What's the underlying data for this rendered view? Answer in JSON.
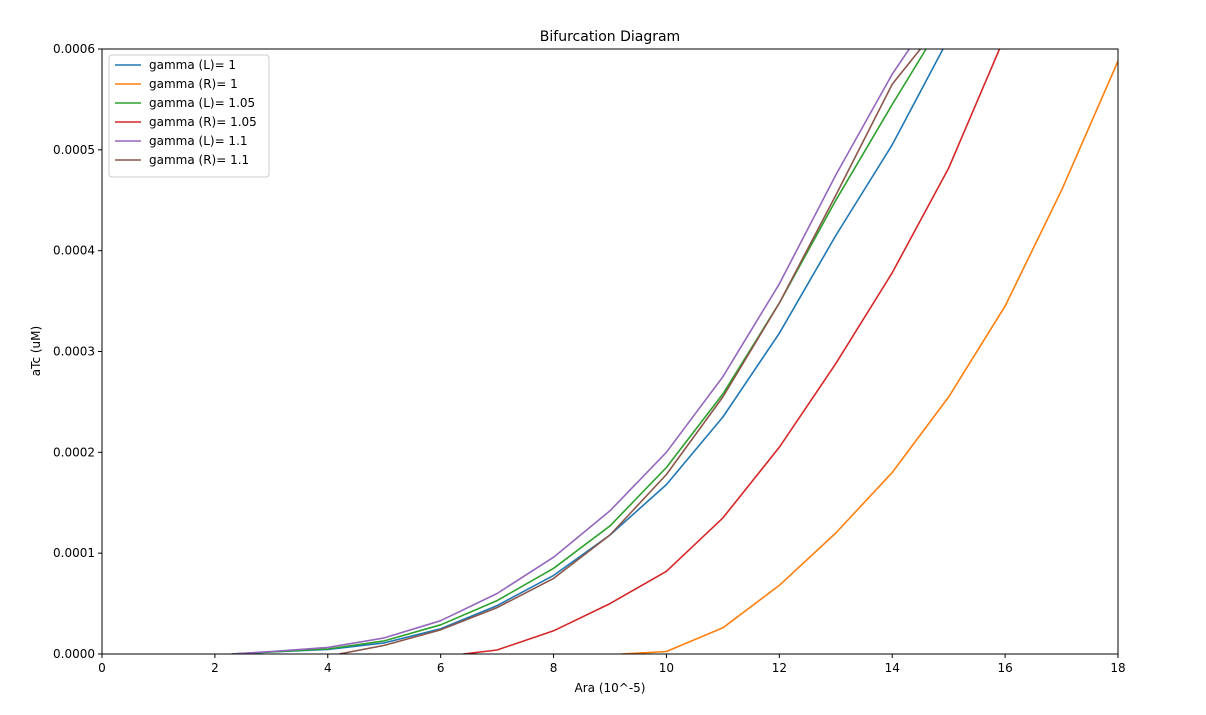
{
  "chart_data": {
    "type": "line",
    "title": "Bifurcation Diagram",
    "xlabel": "Ara (10^-5)",
    "ylabel": "aTc (uM)",
    "xlim": [
      0,
      18
    ],
    "ylim": [
      0,
      0.0006
    ],
    "xticks": [
      "0",
      "2",
      "4",
      "6",
      "8",
      "10",
      "12",
      "14",
      "16",
      "18"
    ],
    "yticks": [
      "0.0000",
      "0.0001",
      "0.0002",
      "0.0003",
      "0.0004",
      "0.0005",
      "0.0006"
    ],
    "grid": false,
    "legend_position": "top-left",
    "series": [
      {
        "name": "gamma (L)= 1",
        "color": "#1f77b4",
        "x": [
          2.3,
          3,
          4,
          5,
          6,
          7,
          8,
          9,
          10,
          11,
          12,
          13,
          14,
          14.9
        ],
        "y": [
          0,
          2e-06,
          4.5e-06,
          1.1e-05,
          2.5e-05,
          4.8e-05,
          7.8e-05,
          0.000118,
          0.000168,
          0.000235,
          0.000318,
          0.000415,
          0.000505,
          0.0006
        ]
      },
      {
        "name": "gamma (R)= 1",
        "color": "#ff7f0e",
        "x": [
          9.2,
          10,
          11,
          12,
          13,
          14,
          15,
          16,
          17,
          18
        ],
        "y": [
          0,
          2.5e-06,
          2.6e-05,
          6.8e-05,
          0.00012,
          0.00018,
          0.000255,
          0.000345,
          0.00046,
          0.000588
        ]
      },
      {
        "name": "gamma (L)= 1.05",
        "color": "#2ca02c",
        "x": [
          2.3,
          3,
          4,
          5,
          6,
          7,
          8,
          9,
          10,
          11,
          12,
          13,
          14,
          14.6
        ],
        "y": [
          0,
          2.2e-06,
          5e-06,
          1.3e-05,
          2.9e-05,
          5.3e-05,
          8.5e-05,
          0.000127,
          0.000185,
          0.000258,
          0.000348,
          0.00045,
          0.000545,
          0.0006
        ]
      },
      {
        "name": "gamma (R)= 1.05",
        "color": "#d62728",
        "x": [
          6.4,
          7,
          8,
          9,
          10,
          11,
          12,
          13,
          14,
          15,
          15.9
        ],
        "y": [
          0,
          4e-06,
          2.3e-05,
          5e-05,
          8.2e-05,
          0.000135,
          0.000205,
          0.000288,
          0.000378,
          0.000482,
          0.0006
        ]
      },
      {
        "name": "gamma (L)= 1.1",
        "color": "#9467bd",
        "x": [
          2.3,
          3,
          4,
          5,
          6,
          7,
          8,
          9,
          10,
          11,
          12,
          13,
          14,
          14.3
        ],
        "y": [
          0,
          2.5e-06,
          6.5e-06,
          1.6e-05,
          3.3e-05,
          6e-05,
          9.6e-05,
          0.000142,
          0.0002,
          0.000275,
          0.000367,
          0.000475,
          0.000575,
          0.0006
        ]
      },
      {
        "name": "gamma (R)= 1.1",
        "color": "#8c564b",
        "x": [
          4.2,
          5,
          6,
          7,
          8,
          9,
          10,
          11,
          12,
          13,
          14,
          14.5
        ],
        "y": [
          0,
          8.5e-06,
          2.4e-05,
          4.6e-05,
          7.5e-05,
          0.000118,
          0.000178,
          0.000255,
          0.000348,
          0.000455,
          0.000565,
          0.0006
        ]
      }
    ]
  }
}
